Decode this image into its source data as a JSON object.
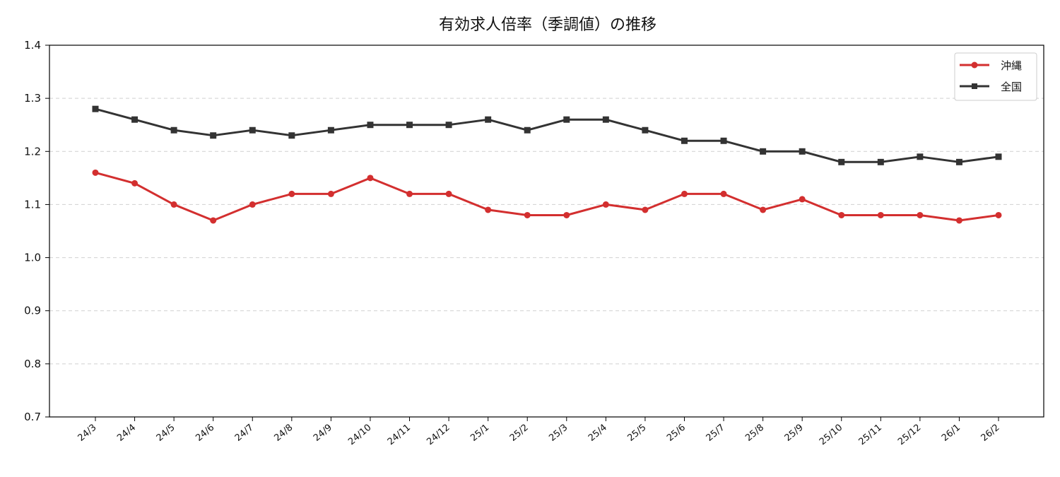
{
  "chart_data": {
    "type": "line",
    "title": "有効求人倍率（季調値）の推移",
    "xlabel": "",
    "ylabel": "",
    "categories": [
      "24/3",
      "24/4",
      "24/5",
      "24/6",
      "24/7",
      "24/8",
      "24/9",
      "24/10",
      "24/11",
      "24/12",
      "25/1",
      "25/2",
      "25/3",
      "25/4",
      "25/5",
      "25/6",
      "25/7",
      "25/8",
      "25/9",
      "25/10",
      "25/11",
      "25/12",
      "26/1",
      "26/2"
    ],
    "ylim": [
      0.7,
      1.4
    ],
    "yticks": [
      "0.7",
      "0.8",
      "0.9",
      "1.0",
      "1.1",
      "1.2",
      "1.3",
      "1.4"
    ],
    "grid": "horizontal dashed",
    "legend_position": "top-right",
    "series": [
      {
        "name": "沖縄",
        "color": "#d32f2f",
        "marker": "circle",
        "values": [
          1.16,
          1.14,
          1.1,
          1.07,
          1.1,
          1.12,
          1.12,
          1.15,
          1.12,
          1.12,
          1.09,
          1.08,
          1.08,
          1.1,
          1.09,
          1.12,
          1.12,
          1.09,
          1.11,
          1.08,
          1.08,
          1.08,
          1.07,
          1.08
        ]
      },
      {
        "name": "全国",
        "color": "#333333",
        "marker": "square",
        "values": [
          1.28,
          1.26,
          1.24,
          1.23,
          1.24,
          1.23,
          1.24,
          1.25,
          1.25,
          1.25,
          1.26,
          1.24,
          1.26,
          1.26,
          1.24,
          1.22,
          1.22,
          1.2,
          1.2,
          1.18,
          1.18,
          1.19,
          1.18,
          1.19
        ]
      }
    ]
  }
}
